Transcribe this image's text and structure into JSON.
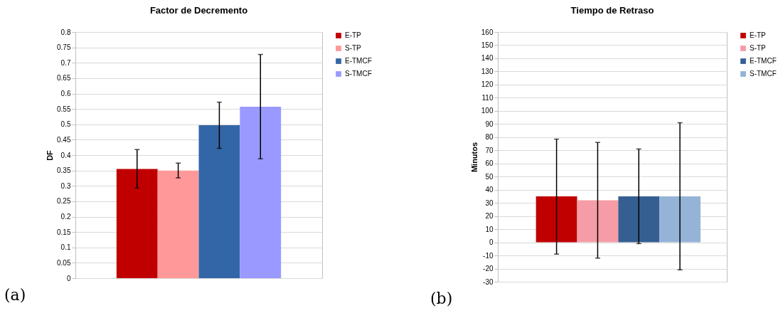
{
  "chart_data": [
    {
      "type": "bar",
      "title": "Factor de Decremento",
      "ylabel": "DF",
      "categories": [
        null
      ],
      "ylim": [
        0,
        0.8
      ],
      "yticks": [
        0,
        0.05,
        0.1,
        0.15,
        0.2,
        0.25,
        0.3,
        0.35,
        0.4,
        0.45,
        0.5,
        0.55,
        0.6,
        0.65,
        0.7,
        0.75,
        0.8
      ],
      "grid": "y",
      "legend": "right",
      "annotations": [
        "(a)"
      ],
      "series": [
        {
          "name": "E-TP",
          "color": "#c00000",
          "values": [
            0.355
          ],
          "errors": [
            [
              0.293,
              0.418
            ]
          ]
        },
        {
          "name": "S-TP",
          "color": "#ff9999",
          "values": [
            0.35
          ],
          "errors": [
            [
              0.326,
              0.374
            ]
          ]
        },
        {
          "name": "E-TMCF",
          "color": "#3366a6",
          "values": [
            0.497
          ],
          "errors": [
            [
              0.422,
              0.572
            ]
          ]
        },
        {
          "name": "S-TMCF",
          "color": "#9999ff",
          "values": [
            0.557
          ],
          "errors": [
            [
              0.388,
              0.727
            ]
          ]
        }
      ]
    },
    {
      "type": "bar",
      "title": "Tiempo de Retraso",
      "ylabel": "Minutos",
      "categories": [
        null
      ],
      "ylim": [
        -30,
        160
      ],
      "yticks": [
        -30,
        -20,
        -10,
        0,
        10,
        20,
        30,
        40,
        50,
        60,
        70,
        80,
        90,
        100,
        110,
        120,
        130,
        140,
        150,
        160
      ],
      "grid": "y",
      "legend": "right",
      "annotations": [
        "(b)"
      ],
      "series": [
        {
          "name": "E-TP",
          "color": "#c00000",
          "values": [
            35
          ],
          "errors": [
            [
              -9,
              78.5
            ]
          ]
        },
        {
          "name": "S-TP",
          "color": "#f59ca6",
          "values": [
            32
          ],
          "errors": [
            [
              -12,
              76
            ]
          ]
        },
        {
          "name": "E-TMCF",
          "color": "#365f91",
          "values": [
            35
          ],
          "errors": [
            [
              -1,
              71
            ]
          ]
        },
        {
          "name": "S-TMCF",
          "color": "#95b3d7",
          "values": [
            35
          ],
          "errors": [
            [
              -21,
              91
            ]
          ]
        }
      ]
    }
  ]
}
